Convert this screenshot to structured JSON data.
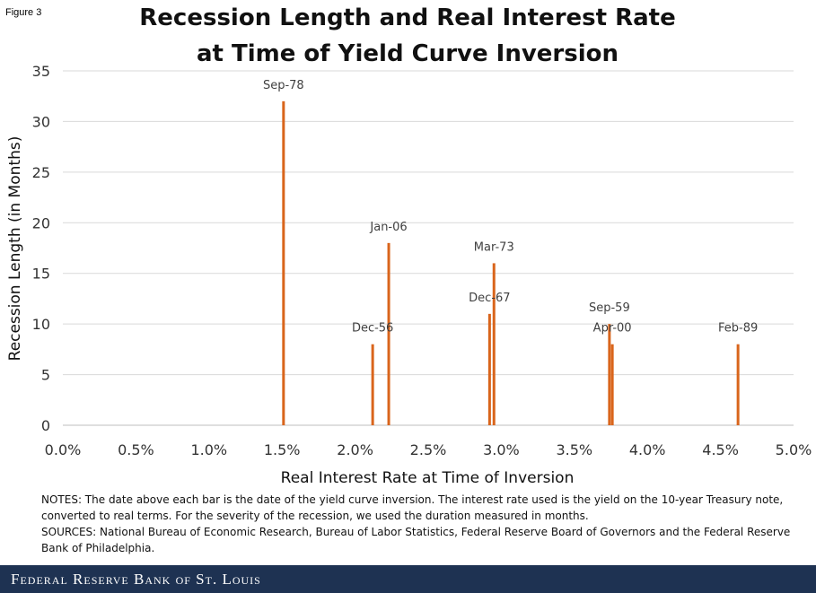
{
  "figure_label": "Figure 3",
  "title_line1": "Recession Length and Real Interest Rate",
  "title_line2": "at Time of Yield Curve Inversion",
  "chart_data": {
    "type": "bar",
    "xlabel": "Real Interest Rate at Time of Inversion",
    "ylabel": "Recession Length (in Months)",
    "xlim": [
      0,
      5
    ],
    "ylim": [
      0,
      35
    ],
    "x_ticks": [
      0,
      0.5,
      1,
      1.5,
      2,
      2.5,
      3,
      3.5,
      4,
      4.5,
      5
    ],
    "x_tick_labels": [
      "0.0%",
      "0.5%",
      "1.0%",
      "1.5%",
      "2.0%",
      "2.5%",
      "3.0%",
      "3.5%",
      "4.0%",
      "4.5%",
      "5.0%"
    ],
    "y_ticks": [
      0,
      5,
      10,
      15,
      20,
      25,
      30,
      35
    ],
    "y_tick_labels": [
      "0",
      "5",
      "10",
      "15",
      "20",
      "25",
      "30",
      "35"
    ],
    "bar_color": "#d9651c",
    "points": [
      {
        "label": "Sep-78",
        "x": 1.51,
        "y": 32
      },
      {
        "label": "Dec-56",
        "x": 2.12,
        "y": 8
      },
      {
        "label": "Jan-06",
        "x": 2.23,
        "y": 18
      },
      {
        "label": "Dec-67",
        "x": 2.92,
        "y": 11
      },
      {
        "label": "Mar-73",
        "x": 2.95,
        "y": 16
      },
      {
        "label": "Sep-59",
        "x": 3.74,
        "y": 10
      },
      {
        "label": "Apr-00",
        "x": 3.76,
        "y": 8
      },
      {
        "label": "Feb-89",
        "x": 4.62,
        "y": 8
      }
    ]
  },
  "notes": "NOTES: The date above each bar is the date of the yield curve inversion. The interest rate used is the yield on the 10-year Treasury note, converted to real terms. For the severity of the recession, we used the duration measured in months.",
  "sources": "SOURCES: National Bureau of Economic Research, Bureau of Labor Statistics, Federal Reserve Board of Governors and the Federal Reserve Bank of Philadelphia.",
  "footer": {
    "text": "Federal Reserve Bank of St. Louis",
    "background": "#1e3252"
  }
}
